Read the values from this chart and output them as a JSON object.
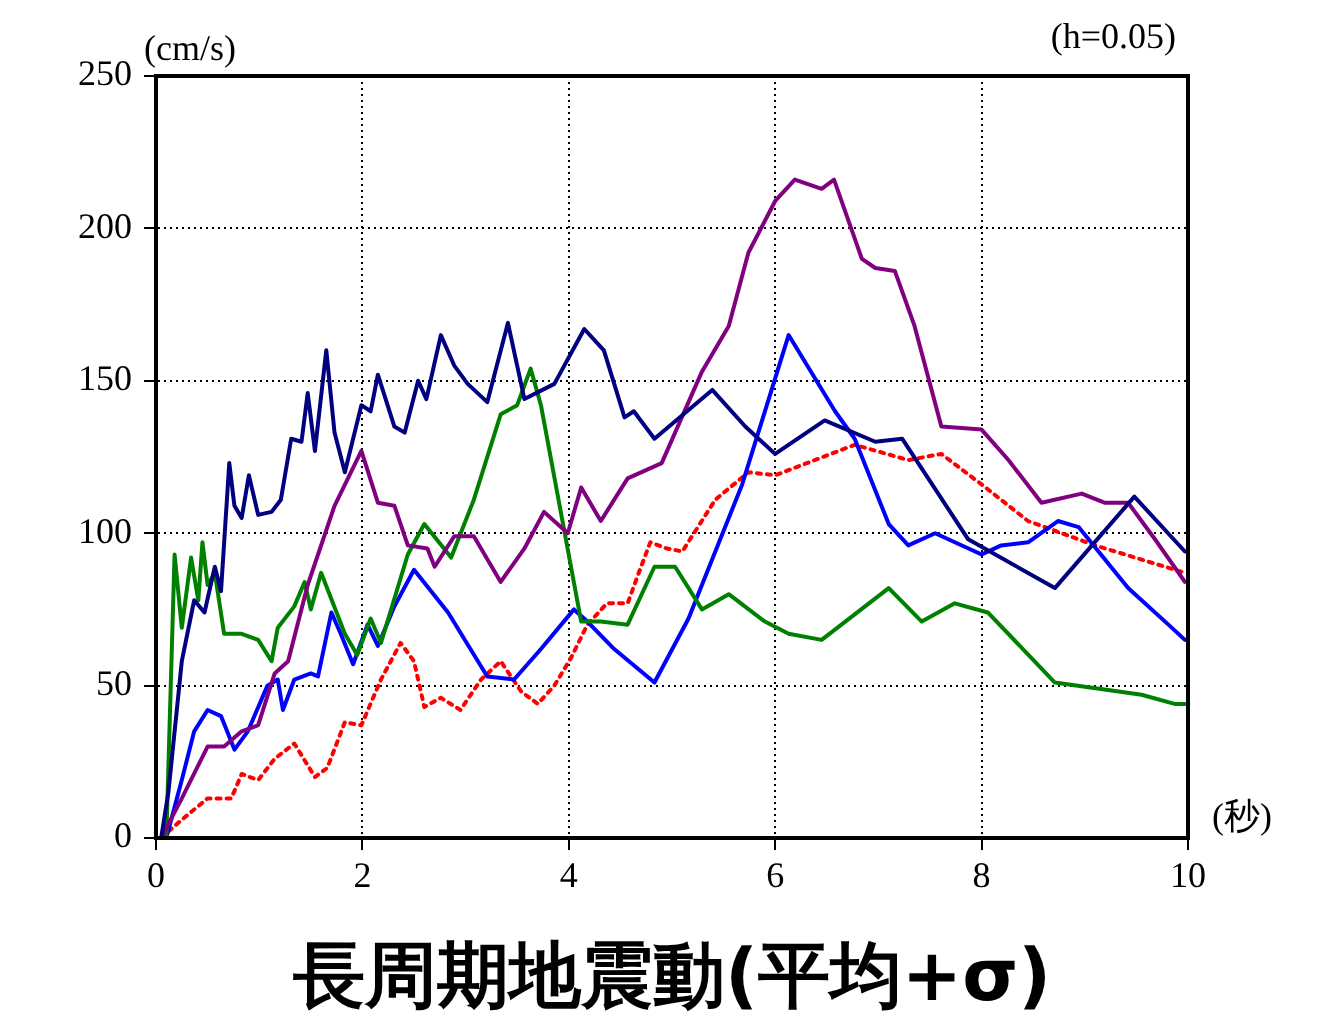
{
  "chart_data": {
    "type": "line",
    "title": "長周期地震動(平均+σ)",
    "xlabel": "(秒)",
    "ylabel": "(cm/s)",
    "annotations": [
      "(h=0.05)"
    ],
    "xlim": [
      0,
      10
    ],
    "xticks": [
      0,
      2,
      4,
      6,
      8,
      10
    ],
    "ylim": [
      0,
      250
    ],
    "yticks": [
      0,
      50,
      100,
      150,
      200,
      250
    ],
    "grid": true,
    "marker": "none",
    "series": [
      {
        "color": "#000080",
        "line_style": "solid",
        "x": [
          0.05,
          0.12,
          0.25,
          0.37,
          0.47,
          0.57,
          0.63,
          0.71,
          0.76,
          0.83,
          0.9,
          0.99,
          1.12,
          1.21,
          1.31,
          1.41,
          1.47,
          1.54,
          1.65,
          1.73,
          1.83,
          1.99,
          2.08,
          2.15,
          2.31,
          2.41,
          2.54,
          2.62,
          2.76,
          2.89,
          3.02,
          3.21,
          3.41,
          3.57,
          3.86,
          4.15,
          4.34,
          4.54,
          4.63,
          4.83,
          5.39,
          5.71,
          6.0,
          6.48,
          6.97,
          7.23,
          7.87,
          8.71,
          9.48,
          9.97
        ],
        "values": [
          0,
          15,
          58,
          78,
          74,
          89,
          81,
          123,
          109,
          105,
          119,
          106,
          107,
          111,
          131,
          130,
          146,
          127,
          160,
          133,
          120,
          142,
          140,
          152,
          135,
          133,
          150,
          144,
          165,
          155,
          149,
          143,
          169,
          144,
          149,
          167,
          160,
          138,
          140,
          131,
          147,
          135,
          126,
          137,
          130,
          131,
          98,
          82,
          112,
          94
        ]
      },
      {
        "color": "#800080",
        "line_style": "solid",
        "x": [
          0.05,
          0.25,
          0.5,
          0.66,
          0.83,
          0.99,
          1.15,
          1.28,
          1.47,
          1.73,
          1.99,
          2.15,
          2.31,
          2.44,
          2.63,
          2.7,
          2.89,
          3.08,
          3.34,
          3.57,
          3.76,
          3.99,
          4.12,
          4.31,
          4.57,
          4.9,
          5.29,
          5.55,
          5.74,
          6.0,
          6.19,
          6.45,
          6.57,
          6.84,
          6.97,
          7.16,
          7.35,
          7.61,
          8.0,
          8.26,
          8.58,
          8.97,
          9.19,
          9.42,
          9.68,
          9.97
        ],
        "values": [
          0,
          13,
          30,
          30,
          35,
          37,
          54,
          58,
          83,
          109,
          127,
          110,
          109,
          96,
          95,
          89,
          99,
          99,
          84,
          95,
          107,
          100,
          115,
          104,
          118,
          123,
          153,
          168,
          192,
          209,
          216,
          213,
          216,
          190,
          187,
          186,
          168,
          135,
          134,
          124,
          110,
          113,
          110,
          110,
          98,
          84
        ]
      },
      {
        "color": "#008000",
        "line_style": "solid",
        "x": [
          0.1,
          0.18,
          0.25,
          0.34,
          0.41,
          0.45,
          0.5,
          0.57,
          0.66,
          0.83,
          0.99,
          1.12,
          1.18,
          1.34,
          1.44,
          1.5,
          1.6,
          1.83,
          1.95,
          2.08,
          2.18,
          2.44,
          2.6,
          2.86,
          3.08,
          3.34,
          3.5,
          3.63,
          3.73,
          4.12,
          4.31,
          4.57,
          4.83,
          5.03,
          5.29,
          5.55,
          5.9,
          6.13,
          6.45,
          7.1,
          7.42,
          7.74,
          8.06,
          8.71,
          9.55,
          9.87,
          9.97
        ],
        "values": [
          0,
          93,
          69,
          92,
          78,
          97,
          83,
          87,
          67,
          67,
          65,
          58,
          69,
          76,
          84,
          75,
          87,
          67,
          60,
          72,
          64,
          93,
          103,
          92,
          111,
          139,
          142,
          154,
          142,
          71,
          71,
          70,
          89,
          89,
          75,
          80,
          71,
          67,
          65,
          82,
          71,
          77,
          74,
          51,
          47,
          44,
          44
        ]
      },
      {
        "color": "#0000ff",
        "line_style": "solid",
        "x": [
          0.1,
          0.25,
          0.37,
          0.5,
          0.63,
          0.76,
          0.89,
          1.08,
          1.18,
          1.23,
          1.34,
          1.5,
          1.57,
          1.7,
          1.79,
          1.91,
          2.05,
          2.15,
          2.31,
          2.5,
          2.83,
          3.21,
          3.47,
          3.73,
          4.05,
          4.18,
          4.44,
          4.83,
          5.16,
          5.68,
          6.13,
          6.58,
          6.77,
          7.1,
          7.29,
          7.55,
          8.0,
          8.19,
          8.45,
          8.74,
          8.94,
          9.42,
          9.81,
          9.97
        ],
        "values": [
          0,
          19,
          35,
          42,
          40,
          29,
          35,
          50,
          52,
          42,
          52,
          54,
          53,
          74,
          67,
          57,
          70,
          63,
          76,
          88,
          74,
          53,
          52,
          62,
          75,
          71,
          62,
          51,
          72,
          116,
          165,
          140,
          131,
          103,
          96,
          100,
          93,
          96,
          97,
          104,
          102,
          82,
          70,
          65
        ]
      },
      {
        "color": "#ff0000",
        "line_style": "dotted",
        "x": [
          0.05,
          0.25,
          0.5,
          0.73,
          0.83,
          0.99,
          1.15,
          1.34,
          1.54,
          1.66,
          1.83,
          1.99,
          2.18,
          2.37,
          2.5,
          2.6,
          2.76,
          2.95,
          3.15,
          3.34,
          3.54,
          3.7,
          3.86,
          4.02,
          4.18,
          4.37,
          4.57,
          4.7,
          4.79,
          4.95,
          5.1,
          5.42,
          5.74,
          6.0,
          6.77,
          7.29,
          7.61,
          8.0,
          8.45,
          9.1,
          9.97
        ],
        "values": [
          0,
          6,
          13,
          13,
          21,
          19,
          26,
          31,
          20,
          23,
          38,
          37,
          52,
          64,
          58,
          43,
          46,
          42,
          52,
          58,
          48,
          44,
          50,
          59,
          70,
          77,
          77,
          89,
          97,
          95,
          94,
          111,
          120,
          119,
          129,
          124,
          126,
          116,
          104,
          96,
          87
        ]
      }
    ]
  }
}
